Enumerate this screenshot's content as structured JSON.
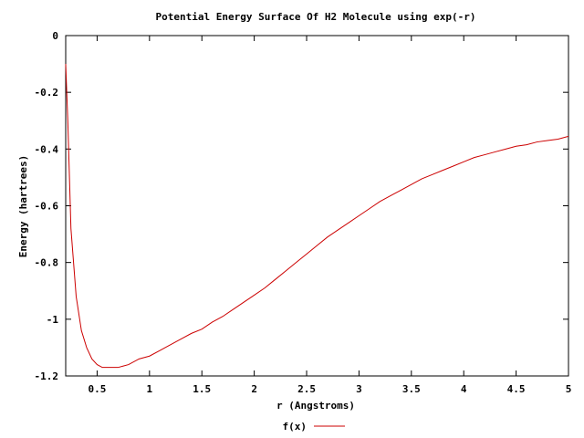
{
  "chart_data": {
    "type": "line",
    "title": "Potential Energy Surface Of H2 Molecule using exp(-r)",
    "xlabel": "r (Angstroms)",
    "ylabel": "Energy (hartrees)",
    "xlim": [
      0.2,
      5
    ],
    "ylim": [
      -1.2,
      0
    ],
    "xticks": [
      0.5,
      1,
      1.5,
      2,
      2.5,
      3,
      3.5,
      4,
      4.5,
      5
    ],
    "xtick_labels": [
      "0.5",
      "1",
      "1.5",
      "2",
      "2.5",
      "3",
      "3.5",
      "4",
      "4.5",
      "5"
    ],
    "yticks": [
      0,
      -0.2,
      -0.4,
      -0.6,
      -0.8,
      -1,
      -1.2
    ],
    "ytick_labels": [
      "0",
      "-0.2",
      "-0.4",
      "-0.6",
      "-0.8",
      "-1",
      "-1.2"
    ],
    "grid": false,
    "legend_position": "bottom-center",
    "series": [
      {
        "name": "f(x)",
        "color": "#cc0000",
        "x": [
          0.2,
          0.22,
          0.25,
          0.3,
          0.35,
          0.4,
          0.45,
          0.5,
          0.55,
          0.6,
          0.65,
          0.7,
          0.75,
          0.8,
          0.9,
          1.0,
          1.1,
          1.2,
          1.3,
          1.4,
          1.5,
          1.6,
          1.7,
          1.8,
          1.9,
          2.0,
          2.1,
          2.2,
          2.3,
          2.4,
          2.5,
          2.6,
          2.7,
          2.8,
          2.9,
          3.0,
          3.1,
          3.2,
          3.3,
          3.4,
          3.5,
          3.6,
          3.7,
          3.8,
          3.9,
          4.0,
          4.1,
          4.2,
          4.3,
          4.4,
          4.5,
          4.6,
          4.7,
          4.8,
          4.9,
          5.0
        ],
        "y": [
          -0.1,
          -0.3,
          -0.68,
          -0.92,
          -1.04,
          -1.1,
          -1.14,
          -1.16,
          -1.17,
          -1.17,
          -1.17,
          -1.17,
          -1.165,
          -1.16,
          -1.14,
          -1.13,
          -1.11,
          -1.09,
          -1.07,
          -1.05,
          -1.035,
          -1.01,
          -0.99,
          -0.965,
          -0.94,
          -0.915,
          -0.89,
          -0.86,
          -0.83,
          -0.8,
          -0.77,
          -0.74,
          -0.71,
          -0.685,
          -0.66,
          -0.635,
          -0.61,
          -0.585,
          -0.565,
          -0.545,
          -0.525,
          -0.505,
          -0.49,
          -0.475,
          -0.46,
          -0.445,
          -0.43,
          -0.42,
          -0.41,
          -0.4,
          -0.39,
          -0.385,
          -0.375,
          -0.37,
          -0.365,
          -0.355
        ]
      }
    ]
  }
}
